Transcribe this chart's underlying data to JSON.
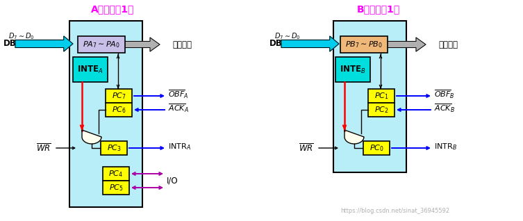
{
  "bg_color": "#ffffff",
  "title_A": "A口（方式1）",
  "title_B": "B口（方式1）",
  "title_color": "#ff00ff",
  "main_box_color": "#b8eef8",
  "yellow_box_color": "#ffff00",
  "cyan_box_color": "#00dddd",
  "PA_box_color": "#c8c0e8",
  "PB_box_color": "#f0b878",
  "gate_color": "#fffff0",
  "watermark": "https://blog.csdn.net/sinat_36945592"
}
